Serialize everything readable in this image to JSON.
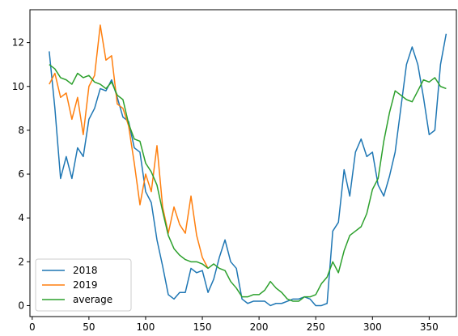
{
  "chart_data": {
    "type": "line",
    "x": [
      15,
      20,
      25,
      30,
      35,
      40,
      45,
      50,
      55,
      60,
      65,
      70,
      75,
      80,
      85,
      90,
      95,
      100,
      105,
      110,
      115,
      120,
      125,
      130,
      135,
      140,
      145,
      150,
      155,
      160,
      165,
      170,
      175,
      180,
      185,
      190,
      195,
      200,
      205,
      210,
      215,
      220,
      225,
      230,
      235,
      240,
      245,
      250,
      255,
      260,
      265,
      270,
      275,
      280,
      285,
      290,
      295,
      300,
      305,
      310,
      315,
      320,
      325,
      330,
      335,
      340,
      345,
      350,
      355,
      360,
      365
    ],
    "series": [
      {
        "name": "2018",
        "color": "#1f77b4",
        "values": [
          11.6,
          9.0,
          5.8,
          6.8,
          5.8,
          7.2,
          6.8,
          8.5,
          9.0,
          9.9,
          9.8,
          10.3,
          9.5,
          8.6,
          8.4,
          7.2,
          7.0,
          5.2,
          4.7,
          3.0,
          1.8,
          0.5,
          0.3,
          0.6,
          0.6,
          1.7,
          1.5,
          1.6,
          0.6,
          1.2,
          2.2,
          3.0,
          2.0,
          1.7,
          0.3,
          0.1,
          0.2,
          0.2,
          0.2,
          0.0,
          0.1,
          0.1,
          0.2,
          0.3,
          0.3,
          0.4,
          0.3,
          0.0,
          0.0,
          0.1,
          3.4,
          3.8,
          6.2,
          5.0,
          7.0,
          7.6,
          6.8,
          7.0,
          5.5,
          5.0,
          5.9,
          7.0,
          9.0,
          11.0,
          11.8,
          11.0,
          9.5,
          7.8,
          8.0,
          11.0,
          12.4
        ]
      },
      {
        "name": "2019",
        "color": "#ff7f0e",
        "values": [
          10.1,
          10.6,
          9.5,
          9.7,
          8.5,
          9.5,
          7.8,
          10.0,
          10.5,
          12.8,
          11.2,
          11.4,
          9.2,
          9.0,
          8.2,
          6.5,
          4.6,
          6.0,
          5.2,
          7.3,
          4.5,
          3.3,
          4.5,
          3.7,
          3.3,
          5.0,
          3.2,
          2.2,
          1.7,
          null,
          null,
          null,
          null,
          null,
          null,
          null,
          null,
          null,
          null,
          null,
          null,
          null,
          null,
          null,
          null,
          null,
          null,
          null,
          null,
          null,
          null,
          null,
          null,
          null,
          null,
          null,
          null,
          null,
          null,
          null,
          null,
          null,
          null,
          null,
          null,
          null,
          null,
          null,
          null,
          null,
          null
        ]
      },
      {
        "name": "average",
        "color": "#2ca02c",
        "values": [
          11.0,
          10.8,
          10.4,
          10.3,
          10.1,
          10.6,
          10.4,
          10.5,
          10.2,
          10.1,
          9.9,
          10.2,
          9.6,
          9.4,
          8.3,
          7.6,
          7.5,
          6.5,
          6.1,
          5.5,
          4.3,
          3.2,
          2.6,
          2.3,
          2.1,
          2.0,
          2.0,
          1.9,
          1.7,
          1.9,
          1.7,
          1.6,
          1.1,
          0.8,
          0.4,
          0.4,
          0.5,
          0.5,
          0.7,
          1.1,
          0.8,
          0.6,
          0.3,
          0.2,
          0.2,
          0.4,
          0.4,
          0.5,
          1.0,
          1.3,
          2.0,
          1.5,
          2.5,
          3.2,
          3.4,
          3.6,
          4.2,
          5.3,
          5.8,
          7.5,
          8.8,
          9.8,
          9.6,
          9.4,
          9.3,
          9.8,
          10.3,
          10.2,
          10.4,
          10.0,
          9.9
        ]
      }
    ],
    "xlim": [
      -2,
      374
    ],
    "xticks": [
      0,
      50,
      100,
      150,
      200,
      250,
      300,
      350
    ],
    "ylim": [
      -0.5,
      13.5
    ],
    "yticks": [
      0,
      2,
      4,
      6,
      8,
      10,
      12
    ],
    "legend": "lower left"
  }
}
